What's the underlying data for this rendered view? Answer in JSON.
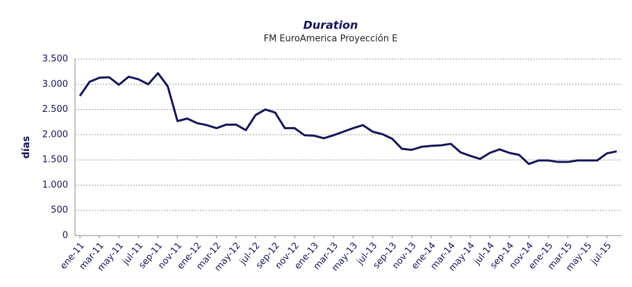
{
  "chart_data": {
    "type": "line",
    "title": "Duration",
    "subtitle": "FM EuroAmerica Proyección E",
    "y_label": "días",
    "categories": [
      "ene-11",
      null,
      "mar-11",
      null,
      "may-11",
      null,
      "jul-11",
      null,
      "sep-11",
      null,
      "nov-11",
      null,
      "ene-12",
      null,
      "mar-12",
      null,
      "may-12",
      null,
      "jul-12",
      null,
      "sep-12",
      null,
      "nov-12",
      null,
      "ene-13",
      null,
      "mar-13",
      null,
      "may-13",
      null,
      "jul-13",
      null,
      "sep-13",
      null,
      "nov-13",
      null,
      "ene-14",
      null,
      "mar-14",
      null,
      "may-14",
      null,
      "jul-14",
      null,
      "sep-14",
      null,
      "nov-14",
      null,
      "ene-15",
      null,
      "mar-15",
      null,
      "may-15",
      null,
      "jul-15",
      null
    ],
    "series": [
      {
        "name": "Duration",
        "color": "#14145a",
        "values": [
          2770,
          3050,
          3130,
          3140,
          2990,
          3150,
          3100,
          3000,
          3220,
          2960,
          2270,
          2320,
          2230,
          2190,
          2130,
          2200,
          2200,
          2090,
          2390,
          2500,
          2440,
          2130,
          2130,
          1990,
          1980,
          1930,
          1990,
          2060,
          2130,
          2190,
          2060,
          2010,
          1920,
          1720,
          1700,
          1760,
          1780,
          1790,
          1820,
          1650,
          1580,
          1520,
          1640,
          1710,
          1640,
          1600,
          1420,
          1490,
          1490,
          1460,
          1460,
          1490,
          1490,
          1490,
          1630,
          1670
        ]
      }
    ],
    "ylim": [
      0,
      3500
    ],
    "yticks": [
      0,
      500,
      {
        "value": 1000,
        "label": "1.000"
      },
      {
        "value": 1500,
        "label": "1.500"
      },
      {
        "value": 2000,
        "label": "2.000"
      },
      {
        "value": 2500,
        "label": "2.500"
      },
      {
        "value": 3000,
        "label": "3.000"
      },
      {
        "value": 3500,
        "label": "3.500"
      }
    ],
    "grid": true
  }
}
